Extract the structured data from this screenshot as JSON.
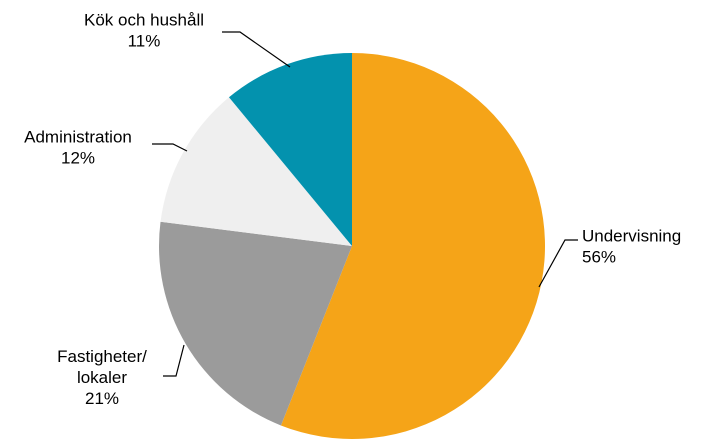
{
  "chart_data": {
    "type": "pie",
    "title": "",
    "start_angle_deg": 0,
    "direction": "clockwise",
    "slices": [
      {
        "label": "Undervisning",
        "value": 56,
        "value_label": "56%",
        "color": "#F5A418"
      },
      {
        "label": "Fastigheter/ lokaler",
        "label_lines": [
          "Fastigheter/",
          "lokaler"
        ],
        "value": 21,
        "value_label": "21%",
        "color": "#9B9B9B"
      },
      {
        "label": "Administration",
        "value": 12,
        "value_label": "12%",
        "color": "#EFEFEF"
      },
      {
        "label": "Kök och hushåll",
        "value": 11,
        "value_label": "11%",
        "color": "#0392AE"
      }
    ]
  }
}
